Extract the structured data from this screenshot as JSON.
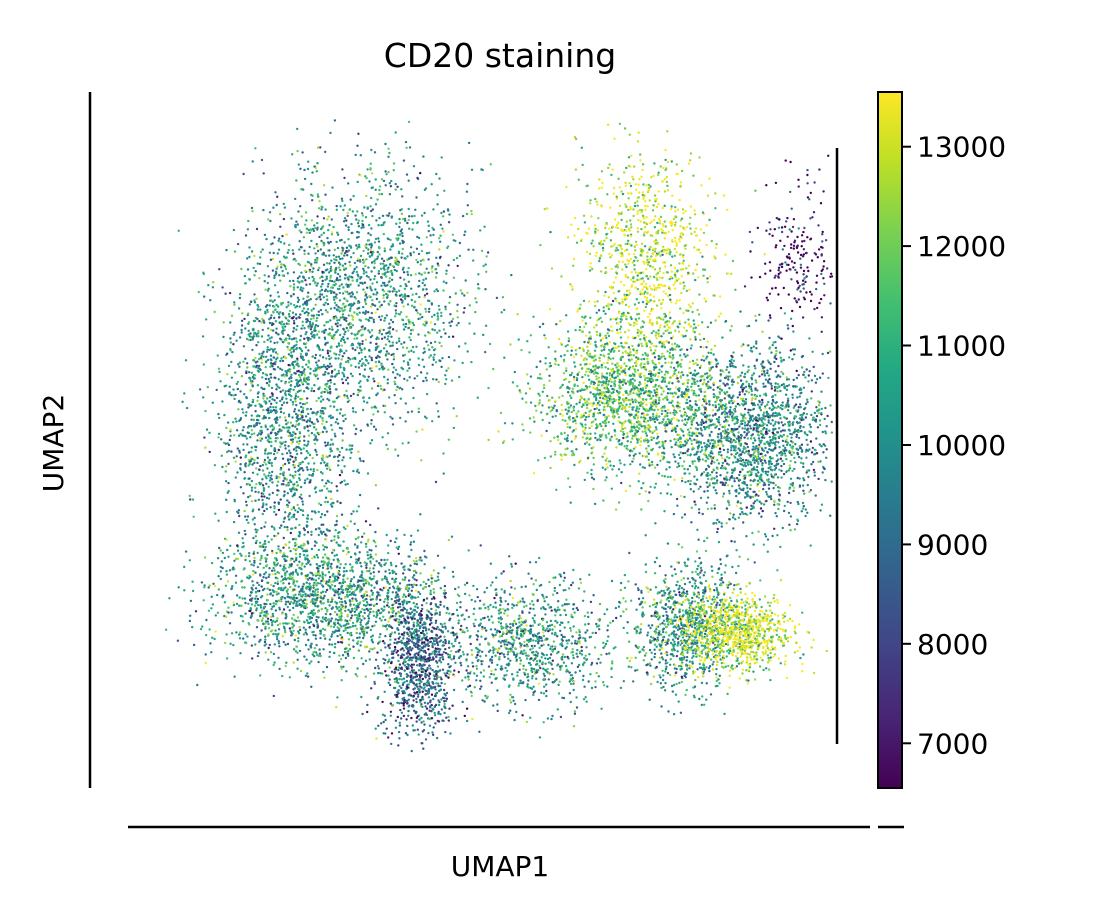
{
  "chart_data": {
    "type": "scatter",
    "title": "CD20 staining",
    "xlabel": "UMAP1",
    "ylabel": "UMAP2",
    "axis_ticks": "none",
    "grid": false,
    "colorbar": {
      "colormap": "viridis",
      "range": [
        6550,
        13550
      ],
      "ticks": [
        7000,
        8000,
        9000,
        10000,
        11000,
        12000,
        13000
      ],
      "tick_labels": [
        "7000",
        "8000",
        "9000",
        "10000",
        "11000",
        "12000",
        "13000"
      ],
      "placement": "right"
    },
    "clusters": [
      {
        "label": "left-crescent-upper",
        "center": [
          0.3,
          0.72
        ],
        "spread": [
          0.08,
          0.1
        ],
        "mean_value": 10300,
        "density": "high"
      },
      {
        "label": "left-crescent-body",
        "center": [
          0.18,
          0.52
        ],
        "spread": [
          0.05,
          0.13
        ],
        "mean_value": 10100,
        "density": "high"
      },
      {
        "label": "left-crescent-base",
        "center": [
          0.25,
          0.24
        ],
        "spread": [
          0.09,
          0.05
        ],
        "mean_value": 10400,
        "density": "high"
      },
      {
        "label": "left-tail",
        "center": [
          0.38,
          0.14
        ],
        "spread": [
          0.03,
          0.06
        ],
        "mean_value": 8800,
        "density": "medium"
      },
      {
        "label": "bottom-middle",
        "center": [
          0.55,
          0.17
        ],
        "spread": [
          0.06,
          0.05
        ],
        "mean_value": 10200,
        "density": "medium"
      },
      {
        "label": "upper-right-yellow-spike",
        "center": [
          0.72,
          0.78
        ],
        "spread": [
          0.05,
          0.09
        ],
        "mean_value": 13000,
        "density": "medium"
      },
      {
        "label": "right-upper-mass",
        "center": [
          0.7,
          0.56
        ],
        "spread": [
          0.07,
          0.06
        ],
        "mean_value": 11400,
        "density": "high"
      },
      {
        "label": "right-side-mass",
        "center": [
          0.88,
          0.5
        ],
        "spread": [
          0.06,
          0.07
        ],
        "mean_value": 9900,
        "density": "high"
      },
      {
        "label": "right-lower",
        "center": [
          0.78,
          0.2
        ],
        "spread": [
          0.04,
          0.05
        ],
        "mean_value": 10300,
        "density": "medium"
      },
      {
        "label": "right-lower-yellow",
        "center": [
          0.86,
          0.19
        ],
        "spread": [
          0.04,
          0.03
        ],
        "mean_value": 13100,
        "density": "medium"
      },
      {
        "label": "far-right-dark-specks",
        "center": [
          0.95,
          0.78
        ],
        "spread": [
          0.03,
          0.06
        ],
        "mean_value": 6800,
        "density": "low"
      }
    ]
  }
}
